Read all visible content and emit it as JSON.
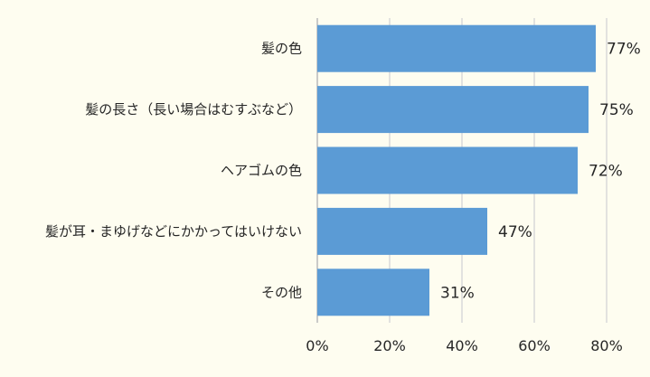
{
  "chart_data": {
    "type": "bar",
    "orientation": "horizontal",
    "categories": [
      "髪の色",
      "髪の長さ（長い場合はむすぶなど）",
      "ヘアゴムの色",
      "髪が耳・まゆげなどにかかってはいけない",
      "その他"
    ],
    "values": [
      77,
      75,
      72,
      47,
      31
    ],
    "data_labels": [
      "77%",
      "75%",
      "72%",
      "47%",
      "31%"
    ],
    "xlim": [
      0,
      80
    ],
    "xticks": [
      0,
      20,
      40,
      60,
      80
    ],
    "xtick_labels": [
      "0%",
      "20%",
      "40%",
      "60%",
      "80%"
    ],
    "grid": "vertical",
    "legend": "none",
    "colors": {
      "bar": "#5b9bd5",
      "grid": "#d9d9d9",
      "background": "#fefdf0",
      "text": "#262626"
    }
  }
}
